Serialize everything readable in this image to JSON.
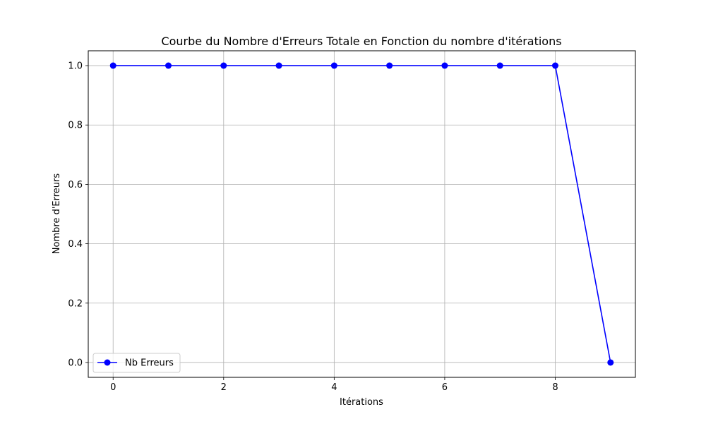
{
  "chart_data": {
    "type": "line",
    "title": "Courbe du Nombre d'Erreurs Totale en Fonction du nombre d'itérations",
    "xlabel": "Itérations",
    "ylabel": "Nombre d'Erreurs",
    "x": [
      0,
      1,
      2,
      3,
      4,
      5,
      6,
      7,
      8,
      9
    ],
    "series": [
      {
        "name": "Nb Erreurs",
        "values": [
          1,
          1,
          1,
          1,
          1,
          1,
          1,
          1,
          1,
          0
        ],
        "color": "#0000ff",
        "marker": "circle"
      }
    ],
    "xlim": [
      -0.45,
      9.45
    ],
    "ylim": [
      -0.05,
      1.05
    ],
    "xticks": [
      0,
      2,
      4,
      6,
      8
    ],
    "xtick_labels": [
      "0",
      "2",
      "4",
      "6",
      "8"
    ],
    "yticks": [
      0.0,
      0.2,
      0.4,
      0.6,
      0.8,
      1.0
    ],
    "ytick_labels": [
      "0.0",
      "0.2",
      "0.4",
      "0.6",
      "0.8",
      "1.0"
    ],
    "grid": true,
    "grid_color": "#b0b0b0",
    "legend_position": "lower-left"
  }
}
